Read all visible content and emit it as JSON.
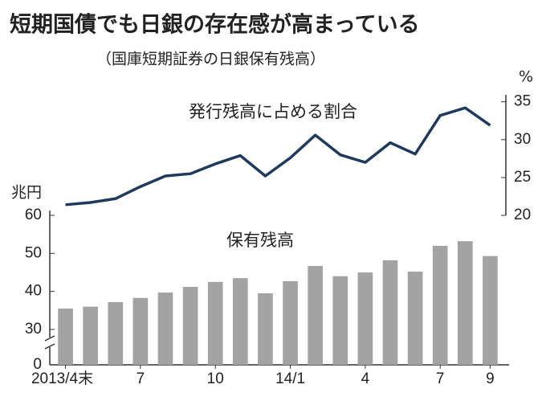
{
  "chart_data": {
    "type": "bar",
    "title": "短期国債でも日銀の存在感が高まっている",
    "subtitle": "（国庫短期証券の日銀保有残高）",
    "y_unit": "兆円",
    "y2_unit": "%",
    "categories": [
      "2013/4末",
      null,
      null,
      "7",
      null,
      null,
      "10",
      null,
      null,
      "14/1",
      null,
      null,
      "4",
      null,
      null,
      "7",
      null,
      "9"
    ],
    "ylim": [
      0,
      60
    ],
    "axis_break": [
      0,
      30
    ],
    "yticks": [
      0,
      30,
      40,
      50,
      60
    ],
    "y2lim": [
      20,
      35.5
    ],
    "y2ticks": [
      20,
      25,
      30,
      35
    ],
    "series": [
      {
        "name": "保有残高",
        "type": "bar",
        "color": "#a3a3a3",
        "values": [
          35.5,
          36,
          37.2,
          38.3,
          39.7,
          41.2,
          42.5,
          43.5,
          39.5,
          42.7,
          46.7,
          44,
          45,
          48.2,
          45.2,
          52,
          53.2,
          49.3
        ]
      },
      {
        "name": "発行残高に占める割合",
        "type": "line",
        "axis": "y2",
        "color": "#1f3a5c",
        "values": [
          21.4,
          21.7,
          22.2,
          23.8,
          25.2,
          25.5,
          26.8,
          27.9,
          25.2,
          27.6,
          30.6,
          28,
          27,
          29.6,
          28.1,
          33.2,
          34.2,
          31.9
        ]
      }
    ]
  }
}
